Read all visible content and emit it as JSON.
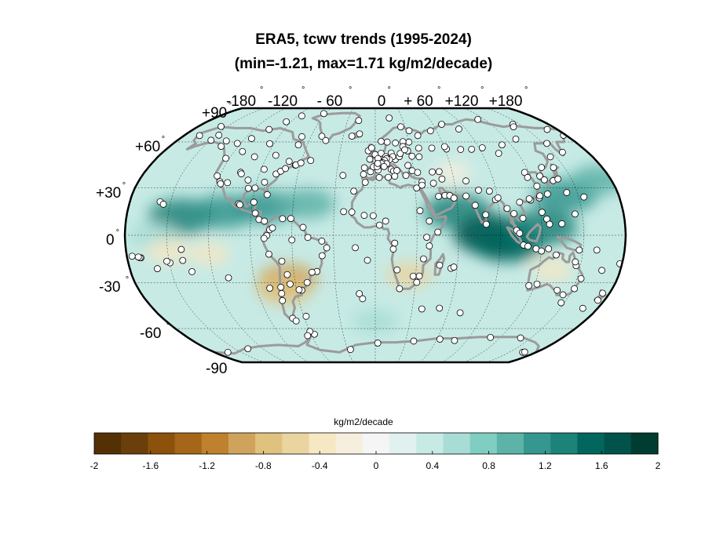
{
  "title": {
    "line1": "ERA5, tcwv trends (1995-2024)",
    "line2": "(min=-1.21, max=1.71 kg/m2/decade)"
  },
  "map": {
    "projection": "robinson",
    "lon_labels": [
      "-180",
      "-120",
      "- 60",
      "0",
      "+ 60",
      "+120",
      "+180"
    ],
    "lat_labels": [
      "+90",
      "+60",
      "+30",
      "0",
      "-30",
      "-60",
      "-90"
    ],
    "degree_symbol": "°",
    "graticule_lon_step": 30,
    "graticule_lat_step": 30,
    "coastline_color": "#9b9b9b",
    "station_marker": "open-circle"
  },
  "colorbar": {
    "title": "kg/m2/decade",
    "ticks": [
      "-2",
      "-1.6",
      "-1.2",
      "-0.8",
      "-0.4",
      "0",
      "0.4",
      "0.8",
      "1.2",
      "1.6",
      "2"
    ],
    "range": [
      -2,
      2
    ],
    "colors": [
      "#543005",
      "#6a3f0c",
      "#8c510a",
      "#a56619",
      "#bf812d",
      "#d0a35c",
      "#dfc27d",
      "#ead4a0",
      "#f6e8c3",
      "#f7efdd",
      "#f5f5f5",
      "#e1f1ef",
      "#c7eae5",
      "#a8ddd6",
      "#80cdc1",
      "#5db3a8",
      "#35978f",
      "#1c8379",
      "#01665e",
      "#01524a",
      "#003c30"
    ]
  },
  "chart_data": {
    "type": "heatmap",
    "title": "ERA5, tcwv trends (1995-2024)",
    "subtitle": "(min=-1.21, max=1.71 kg/m2/decade)",
    "variable": "tcwv",
    "units": "kg/m2/decade",
    "period": "1995-2024",
    "min": -1.21,
    "max": 1.71,
    "color_range": [
      -2,
      2
    ],
    "colorbar_ticks": [
      -2,
      -1.6,
      -1.2,
      -0.8,
      -0.4,
      0,
      0.4,
      0.8,
      1.2,
      1.6,
      2
    ],
    "lon_ticks": [
      -180,
      -120,
      -60,
      0,
      60,
      120,
      180
    ],
    "lat_ticks": [
      90,
      60,
      30,
      0,
      -30,
      -60,
      -90
    ],
    "grid": true,
    "regions": [
      {
        "lon": -140,
        "lat": 12,
        "value": 1.3
      },
      {
        "lon": -110,
        "lat": 15,
        "value": 1.2
      },
      {
        "lon": -80,
        "lat": 18,
        "value": 1.1
      },
      {
        "lon": -50,
        "lat": 20,
        "value": 0.9
      },
      {
        "lon": -160,
        "lat": 0,
        "value": 0.6
      },
      {
        "lon": -150,
        "lat": -10,
        "value": -0.4
      },
      {
        "lon": -120,
        "lat": -12,
        "value": -0.3
      },
      {
        "lon": -65,
        "lat": -28,
        "value": -1.0
      },
      {
        "lon": -70,
        "lat": -35,
        "value": -0.8
      },
      {
        "lon": 25,
        "lat": -25,
        "value": -0.5
      },
      {
        "lon": 60,
        "lat": 15,
        "value": 1.3
      },
      {
        "lon": 85,
        "lat": 0,
        "value": 1.7
      },
      {
        "lon": 95,
        "lat": -5,
        "value": 1.5
      },
      {
        "lon": 120,
        "lat": 5,
        "value": 1.4
      },
      {
        "lon": 140,
        "lat": 25,
        "value": 1.2
      },
      {
        "lon": 170,
        "lat": 35,
        "value": 0.9
      },
      {
        "lon": 130,
        "lat": -22,
        "value": -0.3
      },
      {
        "lon": -40,
        "lat": 60,
        "value": 0.4
      },
      {
        "lon": 40,
        "lat": 60,
        "value": 0.3
      },
      {
        "lon": 0,
        "lat": -55,
        "value": 0.5
      },
      {
        "lon": -100,
        "lat": -50,
        "value": 0.3
      },
      {
        "lon": 60,
        "lat": 40,
        "value": -0.2
      },
      {
        "lon": 10,
        "lat": 45,
        "value": 0.2
      }
    ],
    "stations": [
      [
        -149.6,
        61.2
      ],
      [
        -165.4,
        64.5
      ],
      [
        -156.8,
        71.3
      ],
      [
        -147.7,
        64.8
      ],
      [
        -135,
        57
      ],
      [
        -123,
        49
      ],
      [
        -122,
        37.7
      ],
      [
        -118,
        34
      ],
      [
        -117,
        32.7
      ],
      [
        -112,
        33.4
      ],
      [
        -105,
        40
      ],
      [
        -104,
        39
      ],
      [
        -97,
        35
      ],
      [
        -95,
        29.8
      ],
      [
        -90,
        30
      ],
      [
        -87.6,
        41.9
      ],
      [
        -84,
        33.7
      ],
      [
        -80,
        25.8
      ],
      [
        -77,
        38.9
      ],
      [
        -74,
        40.7
      ],
      [
        -71,
        42.4
      ],
      [
        -70,
        47
      ],
      [
        -64,
        44.6
      ],
      [
        -63.6,
        44.7
      ],
      [
        -60,
        46
      ],
      [
        -52.7,
        47.6
      ],
      [
        -68,
        58
      ],
      [
        -94,
        58.8
      ],
      [
        -114,
        62.4
      ],
      [
        -105,
        69
      ],
      [
        -95,
        75
      ],
      [
        -85,
        80
      ],
      [
        -62,
        82.5
      ],
      [
        -50,
        64
      ],
      [
        -45,
        61
      ],
      [
        -68.5,
        63.7
      ],
      [
        -83,
        51
      ],
      [
        -100,
        50
      ],
      [
        -113,
        53.5
      ],
      [
        -123,
        59
      ],
      [
        -135,
        60.7
      ],
      [
        -100,
        20
      ],
      [
        -99,
        19.4
      ],
      [
        -89,
        21
      ],
      [
        -87,
        14
      ],
      [
        -84,
        10
      ],
      [
        -80,
        9
      ],
      [
        -76,
        3.5
      ],
      [
        -74,
        4.6
      ],
      [
        -67,
        10.5
      ],
      [
        -61,
        10.6
      ],
      [
        -52,
        5
      ],
      [
        -48.5,
        -1.4
      ],
      [
        -60,
        -3
      ],
      [
        -38.5,
        -3.7
      ],
      [
        -35,
        -8
      ],
      [
        -38.5,
        -13
      ],
      [
        -43,
        -23
      ],
      [
        -46.6,
        -23.5
      ],
      [
        -51,
        -30
      ],
      [
        -56,
        -34.9
      ],
      [
        -58,
        -34.6
      ],
      [
        -64,
        -31
      ],
      [
        -65,
        -25
      ],
      [
        -68,
        -16.5
      ],
      [
        -77,
        -12
      ],
      [
        -71.5,
        -33
      ],
      [
        -72,
        -37
      ],
      [
        -73,
        -41.5
      ],
      [
        -70,
        -53
      ],
      [
        -68,
        -54.8
      ],
      [
        -58,
        -51.7
      ],
      [
        -57,
        -64
      ],
      [
        -60,
        -62
      ],
      [
        -64,
        -65
      ],
      [
        -78,
        -0.2
      ],
      [
        -80,
        -2
      ],
      [
        -157.8,
        21.3
      ],
      [
        -155,
        19.7
      ],
      [
        -170,
        -14.3
      ],
      [
        -149.6,
        -17.5
      ],
      [
        -140,
        -9
      ],
      [
        -109,
        -27
      ],
      [
        -80,
        -33.6
      ],
      [
        -25,
        38
      ],
      [
        -16,
        28
      ],
      [
        -23,
        15
      ],
      [
        -17,
        14.7
      ],
      [
        -8,
        12.6
      ],
      [
        -1.5,
        12.4
      ],
      [
        3,
        6.4
      ],
      [
        7.5,
        9
      ],
      [
        14,
        -5
      ],
      [
        13,
        -8.8
      ],
      [
        16,
        -22
      ],
      [
        18.4,
        -33.9
      ],
      [
        28,
        -26
      ],
      [
        31,
        -29.9
      ],
      [
        32.6,
        -25.9
      ],
      [
        35,
        -15
      ],
      [
        37,
        -1.3
      ],
      [
        39,
        -6.8
      ],
      [
        45,
        2
      ],
      [
        47,
        -19
      ],
      [
        55.5,
        -21
      ],
      [
        57.5,
        -20.2
      ],
      [
        39,
        9
      ],
      [
        32.5,
        15.6
      ],
      [
        31,
        30
      ],
      [
        46.7,
        24.7
      ],
      [
        51.5,
        25.3
      ],
      [
        55,
        25.2
      ],
      [
        58,
        23.6
      ],
      [
        44,
        33
      ],
      [
        51,
        35.7
      ],
      [
        69,
        34.5
      ],
      [
        67,
        24.9
      ],
      [
        73,
        19
      ],
      [
        77,
        28.6
      ],
      [
        80,
        13
      ],
      [
        88.4,
        22.6
      ],
      [
        90.4,
        23.8
      ],
      [
        85,
        28
      ],
      [
        80,
        7
      ],
      [
        96,
        17
      ],
      [
        100.5,
        13.7
      ],
      [
        106.7,
        10.8
      ],
      [
        105.8,
        21
      ],
      [
        101.7,
        3.1
      ],
      [
        103.8,
        1.3
      ],
      [
        106.8,
        -6.2
      ],
      [
        110,
        -7
      ],
      [
        116,
        -8.6
      ],
      [
        120,
        -10
      ],
      [
        125,
        -8.6
      ],
      [
        131,
        -12.5
      ],
      [
        115.8,
        -32
      ],
      [
        121.5,
        -31
      ],
      [
        138.6,
        -34.9
      ],
      [
        144.9,
        -37.8
      ],
      [
        151.2,
        -33.9
      ],
      [
        153,
        -27.5
      ],
      [
        146.8,
        -19.3
      ],
      [
        145.7,
        -16.9
      ],
      [
        147.3,
        -42.9
      ],
      [
        174.8,
        -41.3
      ],
      [
        174.7,
        -36.8
      ],
      [
        168,
        -46.5
      ],
      [
        178.4,
        -18.1
      ],
      [
        166.5,
        -22.3
      ],
      [
        159.9,
        -9.4
      ],
      [
        147.2,
        -9.4
      ],
      [
        134.5,
        7.3
      ],
      [
        144.8,
        13.5
      ],
      [
        121,
        14.6
      ],
      [
        123.9,
        10.3
      ],
      [
        125.6,
        7
      ],
      [
        120.9,
        23.7
      ],
      [
        121.5,
        25
      ],
      [
        114.2,
        22.3
      ],
      [
        113.3,
        23.1
      ],
      [
        116.4,
        39.9
      ],
      [
        117,
        36.7
      ],
      [
        121.5,
        31.2
      ],
      [
        126.9,
        37.6
      ],
      [
        129,
        35.2
      ],
      [
        135.5,
        34.7
      ],
      [
        139.7,
        35.7
      ],
      [
        141.3,
        43
      ],
      [
        131.9,
        43.1
      ],
      [
        127.6,
        26.2
      ],
      [
        142.2,
        27.1
      ],
      [
        153.9,
        24.3
      ],
      [
        145,
        50
      ],
      [
        153,
        59
      ],
      [
        158.6,
        53
      ],
      [
        177.5,
        64.7
      ],
      [
        170,
        69
      ],
      [
        143,
        73
      ],
      [
        129,
        62
      ],
      [
        112,
        58
      ],
      [
        104,
        52.3
      ],
      [
        92.9,
        56
      ],
      [
        82.9,
        55
      ],
      [
        73.4,
        54.9
      ],
      [
        61.4,
        55.2
      ],
      [
        60.6,
        56.8
      ],
      [
        49,
        55.8
      ],
      [
        37.6,
        55.8
      ],
      [
        30.3,
        59.9
      ],
      [
        33,
        68
      ],
      [
        24.9,
        60.2
      ],
      [
        18,
        59.3
      ],
      [
        10.7,
        59.9
      ],
      [
        5.3,
        60.4
      ],
      [
        -6,
        54
      ],
      [
        -3.2,
        55.9
      ],
      [
        -0.1,
        51.5
      ],
      [
        2.3,
        48.9
      ],
      [
        4.9,
        52.4
      ],
      [
        8.7,
        50.1
      ],
      [
        13.4,
        52.5
      ],
      [
        16.4,
        48.2
      ],
      [
        19.9,
        50.1
      ],
      [
        21,
        52.2
      ],
      [
        14.4,
        50.1
      ],
      [
        11.6,
        48.1
      ],
      [
        9.2,
        48.8
      ],
      [
        7.6,
        47.6
      ],
      [
        6,
        46.2
      ],
      [
        9.2,
        45.5
      ],
      [
        12.5,
        41.9
      ],
      [
        14.3,
        40.8
      ],
      [
        16.9,
        41.1
      ],
      [
        15,
        37.5
      ],
      [
        23.7,
        38
      ],
      [
        28.9,
        41
      ],
      [
        33,
        39.9
      ],
      [
        35.5,
        33.9
      ],
      [
        35.2,
        31.8
      ],
      [
        10,
        36.8
      ],
      [
        3,
        36.7
      ],
      [
        -7.6,
        33.6
      ],
      [
        -9.1,
        38.7
      ],
      [
        -3.7,
        40.4
      ],
      [
        2.2,
        41.4
      ],
      [
        -8.6,
        42.9
      ],
      [
        -1.5,
        43.5
      ],
      [
        1.4,
        43.6
      ],
      [
        4.8,
        45.8
      ],
      [
        2,
        45.7
      ],
      [
        -4.5,
        48.4
      ],
      [
        7,
        43.7
      ],
      [
        26.1,
        44.4
      ],
      [
        30.5,
        50.4
      ],
      [
        27.6,
        53.9
      ],
      [
        24.1,
        56.9
      ],
      [
        25.3,
        54.7
      ],
      [
        36.3,
        50
      ],
      [
        44.5,
        40.2
      ],
      [
        49.9,
        40.4
      ],
      [
        -21.9,
        64.1
      ],
      [
        -15,
        65.7
      ],
      [
        -18,
        76
      ],
      [
        15.6,
        78.2
      ],
      [
        25.8,
        71
      ],
      [
        40,
        64.5
      ],
      [
        54,
        68
      ],
      [
        69,
        73
      ],
      [
        82.9,
        69.3
      ],
      [
        113,
        77
      ],
      [
        140,
        71
      ],
      [
        165,
        -78
      ],
      [
        -165,
        -78
      ],
      [
        -136,
        -75
      ],
      [
        78,
        -68.6
      ],
      [
        110.5,
        -66.3
      ],
      [
        140,
        -66.7
      ],
      [
        62.9,
        -67.6
      ],
      [
        38,
        -69
      ],
      [
        2.5,
        -70.5
      ],
      [
        -26.7,
        -75.6
      ],
      [
        166.7,
        -77.8
      ],
      [
        -170.7,
        -14.3
      ],
      [
        -176.2,
        -13.3
      ],
      [
        -171.8,
        -13.8
      ],
      [
        -159.8,
        -21.2
      ],
      [
        -140,
        -16
      ],
      [
        -134.9,
        -23.1
      ],
      [
        -151.7,
        -16.5
      ],
      [
        70,
        -49.4
      ],
      [
        51.9,
        -46.4
      ],
      [
        37.8,
        -46.9
      ],
      [
        -14.4,
        -7.9
      ],
      [
        -5.7,
        -15.9
      ],
      [
        -9.9,
        -40.3
      ],
      [
        -12.3,
        -37.1
      ]
    ]
  }
}
